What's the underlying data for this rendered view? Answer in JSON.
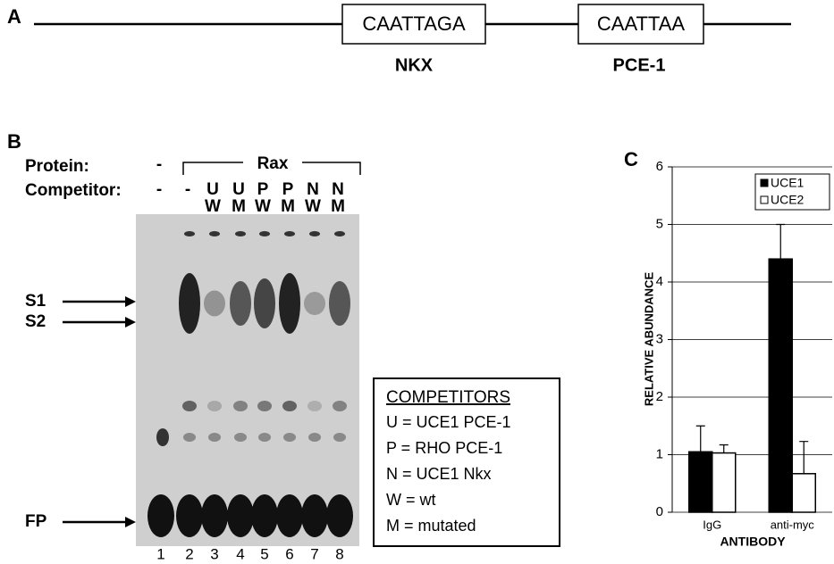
{
  "panel_a": {
    "label": "A",
    "boxes": [
      "CAATTAGA",
      "CAATTAA"
    ],
    "names": [
      "NKX",
      "PCE-1"
    ]
  },
  "panel_b": {
    "label": "B",
    "protein_label": "Protein:",
    "protein_none": "-",
    "protein_name": "Rax",
    "competitor_label": "Competitor:",
    "competitor_top": [
      "-",
      "-",
      "U",
      "U",
      "P",
      "P",
      "N",
      "N"
    ],
    "competitor_bottom": [
      "W",
      "M",
      "W",
      "M",
      "W",
      "M"
    ],
    "arrows": [
      "S1",
      "S2",
      "FP"
    ],
    "lanes": [
      1,
      2,
      3,
      4,
      5,
      6,
      7,
      8
    ],
    "legend_title": "COMPETITORS",
    "legend_lines": [
      "U = UCE1 PCE-1",
      "P = RHO PCE-1",
      "N = UCE1 Nkx",
      "W = wt",
      "M = mutated"
    ]
  },
  "panel_c_label": "C",
  "chart_data": {
    "type": "bar",
    "categories": [
      "IgG",
      "anti-myc"
    ],
    "x_label": "ANTIBODY",
    "y_label": "RELATIVE ABUNDANCE",
    "ylim": [
      0,
      6
    ],
    "yticks": [
      0,
      1,
      2,
      3,
      4,
      5,
      6
    ],
    "grid": true,
    "legend": "upper right",
    "series": [
      {
        "name": "UCE1",
        "color": "#000000",
        "values": [
          1.05,
          4.4
        ],
        "errors": [
          0.45,
          0.6
        ]
      },
      {
        "name": "UCE2",
        "color": "#ffffff",
        "values": [
          1.03,
          0.67
        ],
        "errors": [
          0.14,
          0.56
        ]
      }
    ]
  }
}
